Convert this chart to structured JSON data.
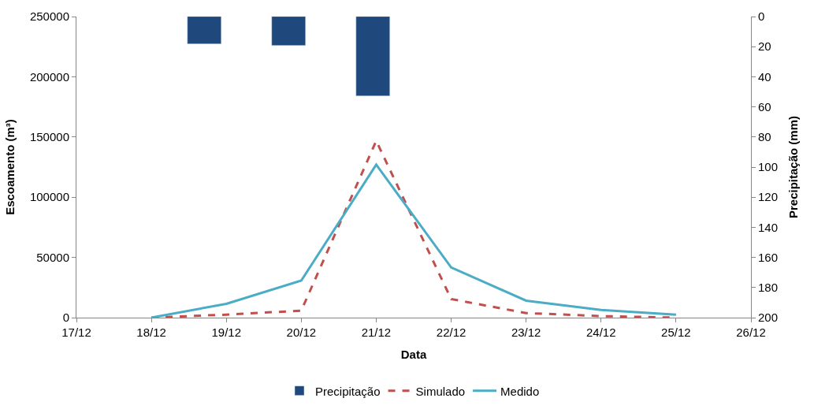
{
  "chart_data": {
    "type": "line",
    "xlabel": "Data",
    "ylabel": "Escoamento (m³)",
    "y2label": "Precipitação (mm)",
    "xlim": [
      "--12-17",
      "--12-26"
    ],
    "xticks": [
      {
        "value": "--12-17",
        "label": "17/12"
      },
      {
        "value": "--12-18",
        "label": "18/12"
      },
      {
        "value": "--12-19",
        "label": "19/12"
      },
      {
        "value": "--12-20",
        "label": "20/12"
      },
      {
        "value": "--12-21",
        "label": "21/12"
      },
      {
        "value": "--12-22",
        "label": "22/12"
      },
      {
        "value": "--12-23",
        "label": "23/12"
      },
      {
        "value": "--12-24",
        "label": "24/12"
      },
      {
        "value": "--12-25",
        "label": "25/12"
      },
      {
        "value": "--12-26",
        "label": "26/12"
      }
    ],
    "ylim": [
      0,
      250000
    ],
    "yticks": [
      0,
      50000,
      100000,
      150000,
      200000,
      250000
    ],
    "y2lim": [
      200,
      0
    ],
    "y2ticks": [
      0,
      20,
      40,
      60,
      80,
      100,
      120,
      140,
      160,
      180,
      200
    ],
    "series": [
      {
        "name": "Precipitação",
        "type": "bar",
        "axis": "y2",
        "color": "#1f497d",
        "x": [
          "--12-18T17:00",
          "--12-19T20:00",
          "--12-20T23:00"
        ],
        "values": [
          18.5,
          19.5,
          53
        ]
      },
      {
        "name": "Simulado",
        "line_style": "dashed",
        "color": "#c0504d",
        "x": [
          "--12-18",
          "--12-19",
          "--12-20",
          "--12-21",
          "--12-22",
          "--12-23",
          "--12-24",
          "--12-25"
        ],
        "values": [
          0,
          2500,
          5800,
          146800,
          15400,
          3800,
          1300,
          0
        ]
      },
      {
        "name": "Medido",
        "line_style": "solid",
        "color": "#4bacc6",
        "x": [
          "--12-18",
          "--12-19",
          "--12-20",
          "--12-21",
          "--12-22",
          "--12-23",
          "--12-24",
          "--12-25"
        ],
        "values": [
          0,
          11500,
          30800,
          127000,
          41700,
          14100,
          6400,
          2500
        ]
      }
    ],
    "grid": false,
    "legend": "bottom",
    "marker": "none"
  }
}
